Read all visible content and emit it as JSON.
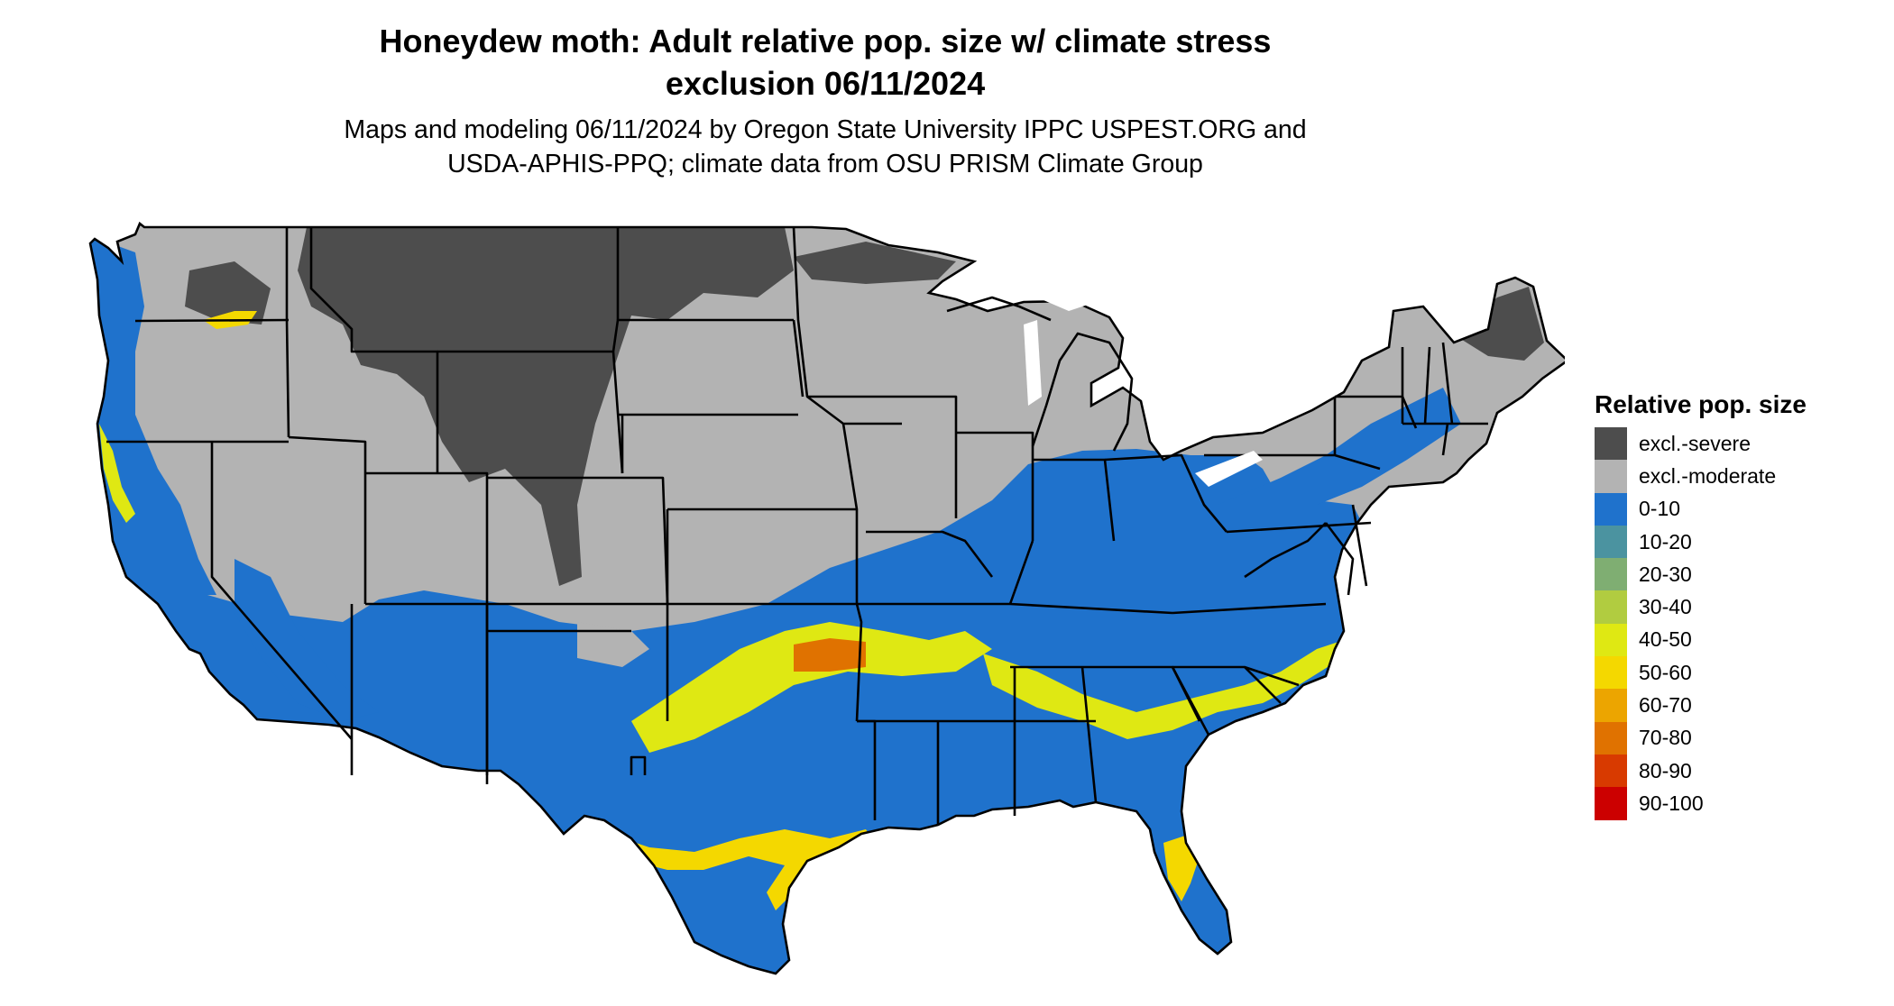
{
  "header": {
    "title_line1": "Honeydew moth: Adult relative pop. size w/ climate stress",
    "title_line2": "exclusion 06/11/2024",
    "subtitle_line1": "Maps and modeling 06/11/2024 by Oregon State University IPPC USPEST.ORG and",
    "subtitle_line2": "USDA-APHIS-PPQ; climate data from OSU PRISM Climate Group"
  },
  "map": {
    "region": "Contiguous United States",
    "colors": {
      "background": "#ffffff",
      "state_borders": "#000000",
      "excl_severe": "#4d4d4d",
      "excl_moderate": "#b3b3b3",
      "low": "#1f72cc"
    }
  },
  "legend": {
    "title": "Relative pop. size",
    "items": [
      {
        "label": "excl.-severe",
        "color": "#4d4d4d"
      },
      {
        "label": "excl.-moderate",
        "color": "#b3b3b3"
      },
      {
        "label": "0-10",
        "color": "#1f72cc"
      },
      {
        "label": "10-20",
        "color": "#4b93a0"
      },
      {
        "label": "20-30",
        "color": "#7fae72"
      },
      {
        "label": "30-40",
        "color": "#b1cc40"
      },
      {
        "label": "40-50",
        "color": "#dfe813"
      },
      {
        "label": "50-60",
        "color": "#f4d800"
      },
      {
        "label": "60-70",
        "color": "#eca500"
      },
      {
        "label": "70-80",
        "color": "#e07200"
      },
      {
        "label": "80-90",
        "color": "#d83a00"
      },
      {
        "label": "90-100",
        "color": "#cc0000"
      }
    ]
  }
}
